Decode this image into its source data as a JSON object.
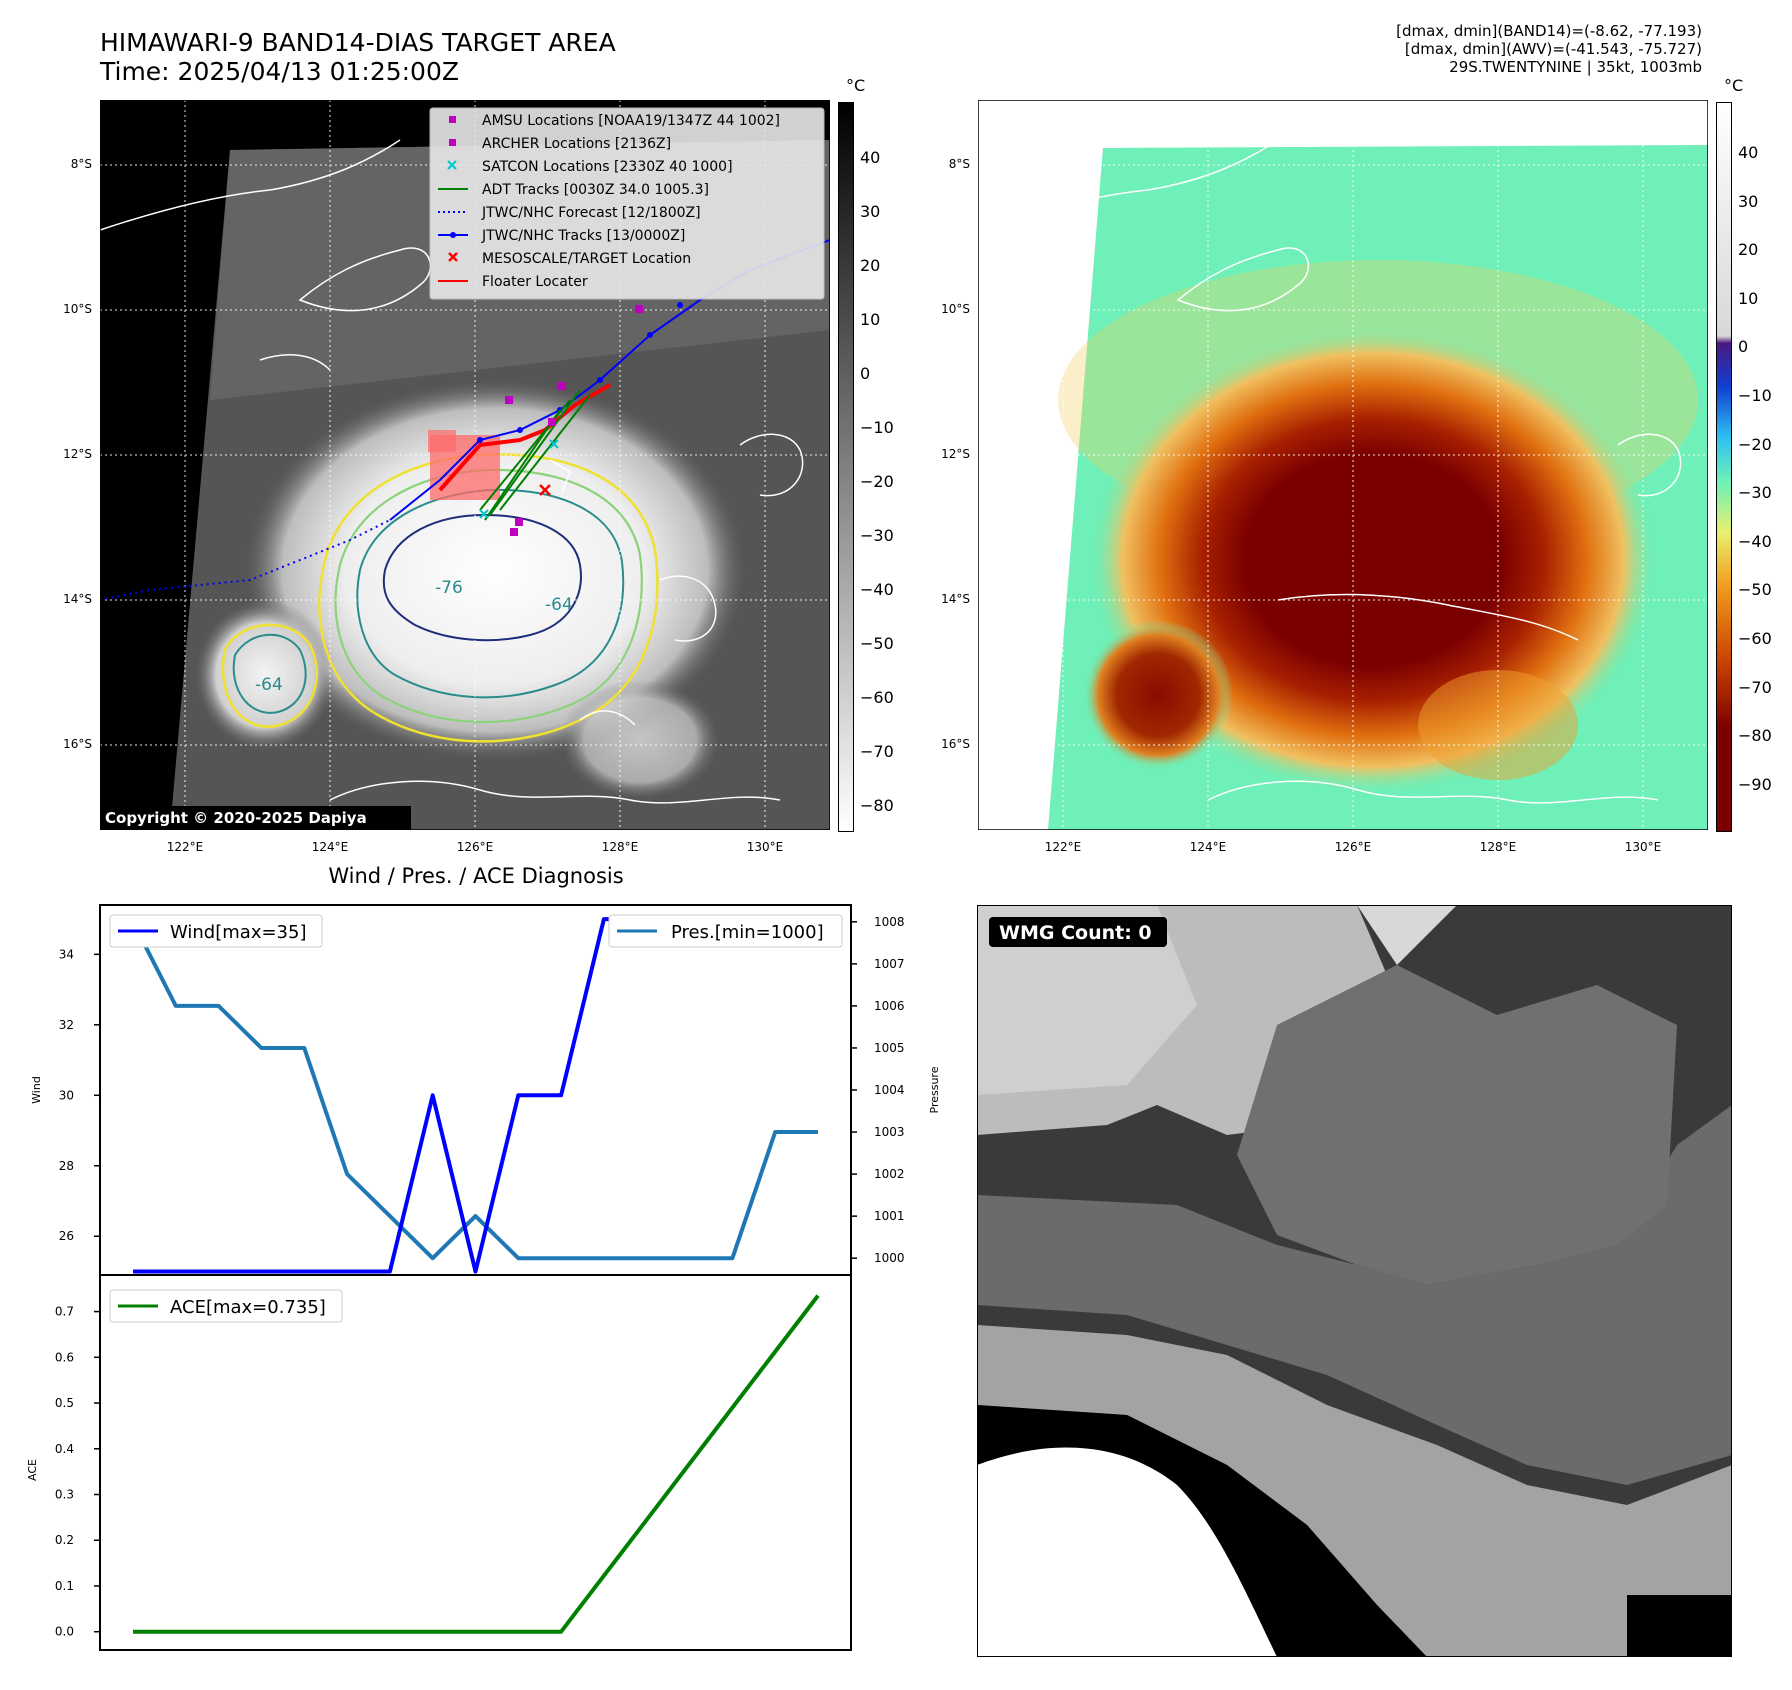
{
  "header": {
    "title_line1": "HIMAWARI-9 BAND14-DIAS TARGET AREA",
    "title_line2": "Time: 2025/04/13 01:25:00Z",
    "info_line1": "[dmax, dmin](BAND14)=(-8.62, -77.193)",
    "info_line2": "[dmax, dmin](AWV)=(-41.543, -75.727)",
    "info_line3": "29S.TWENTYNINE | 35kt, 1003mb"
  },
  "maps": {
    "lat_labels": [
      "8°S",
      "10°S",
      "12°S",
      "14°S",
      "16°S"
    ],
    "lon_labels": [
      "122°E",
      "124°E",
      "126°E",
      "128°E",
      "130°E"
    ],
    "copyright": "Copyright © 2020-2025 Dapiya",
    "contour_labels": [
      "-76",
      "-64",
      "-64"
    ],
    "colorbar1": {
      "unit": "°C",
      "ticks": [
        "40",
        "30",
        "20",
        "10",
        "0",
        "−10",
        "−20",
        "−30",
        "−40",
        "−50",
        "−60",
        "−70",
        "−80"
      ]
    },
    "colorbar2": {
      "unit": "°C",
      "ticks": [
        "40",
        "30",
        "20",
        "10",
        "0",
        "−10",
        "−20",
        "−30",
        "−40",
        "−50",
        "−60",
        "−70",
        "−80",
        "−90"
      ]
    },
    "colors": {
      "ocean": "#3c3c3c",
      "cloud": "#f2f2f2",
      "coast": "#ffffff",
      "yellow": "#f0e030",
      "green": "#8cd27a",
      "teal": "#2a8c8c",
      "navy": "#1e2e7a",
      "awv_bg": "#6ef0b8",
      "awv_core": "#7a0000"
    }
  },
  "legend": {
    "items": [
      {
        "label": "AMSU Locations [NOAA19/1347Z 44 1002]",
        "color": "#c000c0",
        "marker": "square"
      },
      {
        "label": "ARCHER Locations [2136Z]",
        "color": "#c000c0",
        "marker": "square"
      },
      {
        "label": "SATCON Locations [2330Z 40 1000]",
        "color": "#00c8c8",
        "marker": "x"
      },
      {
        "label": "ADT Tracks [0030Z 34.0 1005.3]",
        "color": "#008000",
        "marker": "line"
      },
      {
        "label": "JTWC/NHC Forecast [12/1800Z]",
        "color": "#0000ff",
        "marker": "dotted"
      },
      {
        "label": "JTWC/NHC Tracks [13/0000Z]",
        "color": "#0000ff",
        "marker": "line-dot"
      },
      {
        "label": "MESOSCALE/TARGET Location",
        "color": "#ff0000",
        "marker": "x"
      },
      {
        "label": "Floater Locater",
        "color": "#ff0000",
        "marker": "line"
      }
    ]
  },
  "diagnosis": {
    "title": "Wind / Pres. / ACE Diagnosis",
    "wind_label": "Wind[max=35]",
    "pres_label": "Pres.[min=1000]",
    "ace_label": "ACE[max=0.735]",
    "wind_axis_title": "Wind",
    "pres_axis_title": "Pressure",
    "ace_axis_title": "ACE"
  },
  "wmg": {
    "label": "WMG Count: 0"
  },
  "chart_data": [
    {
      "type": "line",
      "title": "Wind / Pres. / ACE Diagnosis",
      "ylabel": "Wind",
      "ylim": [
        24.9,
        35.4
      ],
      "yticks": [
        26,
        28,
        30,
        32,
        34
      ],
      "series": [
        {
          "name": "Wind[max=35]",
          "color": "#0000ff",
          "axis": "left",
          "values": [
            25,
            25,
            25,
            25,
            25,
            25,
            25,
            30,
            25,
            30,
            30,
            35,
            35,
            35,
            35,
            35,
            35
          ]
        },
        {
          "name": "Pres.[min=1000]",
          "color": "#1f77b4",
          "axis": "right",
          "values": [
            1008,
            1006,
            1006,
            1005,
            1005,
            1002,
            1001,
            1000,
            1001,
            1000,
            1000,
            1000,
            1000,
            1000,
            1000,
            1003,
            1003
          ]
        }
      ],
      "y2label": "Pressure",
      "y2lim": [
        999.6,
        1008.4
      ],
      "y2ticks": [
        1000,
        1001,
        1002,
        1003,
        1004,
        1005,
        1006,
        1007,
        1008
      ]
    },
    {
      "type": "line",
      "ylabel": "ACE",
      "ylim": [
        -0.04,
        0.78
      ],
      "yticks": [
        0.0,
        0.1,
        0.2,
        0.3,
        0.4,
        0.5,
        0.6,
        0.7
      ],
      "series": [
        {
          "name": "ACE[max=0.735]",
          "color": "#008000",
          "values": [
            0,
            0,
            0,
            0,
            0,
            0,
            0,
            0,
            0,
            0,
            0,
            0.1225,
            0.245,
            0.3675,
            0.49,
            0.6125,
            0.735
          ]
        }
      ]
    }
  ]
}
